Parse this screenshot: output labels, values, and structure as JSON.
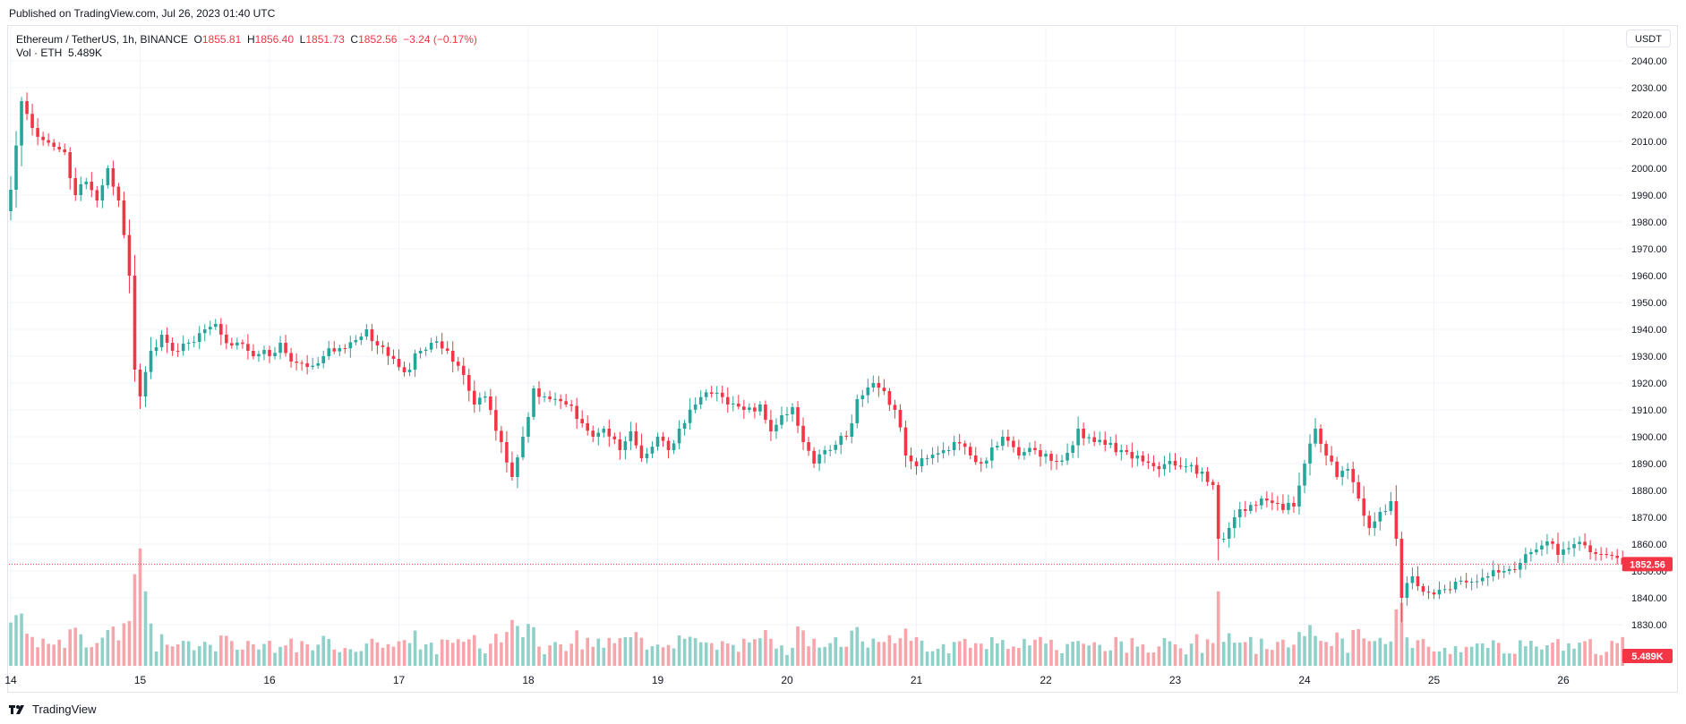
{
  "header": {
    "published": "Published on TradingView.com, Jul 26, 2023 01:40 UTC"
  },
  "legend": {
    "symbol": "Ethereum / TetherUS, 1h, BINANCE",
    "o_label": "O",
    "o_value": "1855.81",
    "h_label": "H",
    "h_value": "1856.40",
    "l_label": "L",
    "l_value": "1851.73",
    "c_label": "C",
    "c_value": "1852.56",
    "change": "−3.24 (−0.17%)",
    "vol_label": "Vol · ETH",
    "vol_value": "5.489K"
  },
  "currency_button": "USDT",
  "brand": {
    "name": "TradingView",
    "icon": "tradingview-logo-icon"
  },
  "colors": {
    "up": "#26a69a",
    "down": "#f23645",
    "vol_up": "#8fd1c9",
    "vol_down": "#f7a5aa",
    "grid": "#f0f3fa"
  },
  "chart_data": {
    "type": "candlestick",
    "title": "Ethereum / TetherUS, 1h, BINANCE",
    "y_axis": {
      "ticks": [
        1830,
        1840,
        1850,
        1860,
        1870,
        1880,
        1890,
        1900,
        1910,
        1920,
        1930,
        1940,
        1950,
        1960,
        1970,
        1980,
        1990,
        2000,
        2010,
        2020,
        2030,
        2040
      ],
      "tick_labels": [
        "1830.00",
        "1840.00",
        "1850.00",
        "1860.00",
        "1870.00",
        "1880.00",
        "1890.00",
        "1900.00",
        "1910.00",
        "1920.00",
        "1930.00",
        "1940.00",
        "1950.00",
        "1960.00",
        "1970.00",
        "1980.00",
        "1990.00",
        "2000.00",
        "2010.00",
        "2020.00",
        "2030.00",
        "2040.00"
      ],
      "range": [
        1820,
        2045
      ]
    },
    "x_axis": {
      "ticks": [
        "14",
        "15",
        "16",
        "17",
        "18",
        "19",
        "20",
        "21",
        "22",
        "23",
        "24",
        "25",
        "26"
      ],
      "range_hours": [
        0,
        300
      ]
    },
    "last_price": 1852.56,
    "last_price_label": "1852.56",
    "last_volume_label": "5.489K",
    "keypoints": [
      [
        0,
        1992
      ],
      [
        2,
        2025
      ],
      [
        4,
        2015
      ],
      [
        8,
        2008
      ],
      [
        10,
        2006
      ],
      [
        12,
        1990
      ],
      [
        14,
        1995
      ],
      [
        16,
        1988
      ],
      [
        18,
        2000
      ],
      [
        20,
        1988
      ],
      [
        22,
        1960
      ],
      [
        23,
        1925
      ],
      [
        24,
        1915
      ],
      [
        26,
        1932
      ],
      [
        28,
        1938
      ],
      [
        30,
        1932
      ],
      [
        33,
        1935
      ],
      [
        36,
        1940
      ],
      [
        38,
        1942
      ],
      [
        41,
        1934
      ],
      [
        44,
        1932
      ],
      [
        48,
        1930
      ],
      [
        50,
        1935
      ],
      [
        52,
        1928
      ],
      [
        55,
        1926
      ],
      [
        58,
        1930
      ],
      [
        61,
        1933
      ],
      [
        64,
        1936
      ],
      [
        66,
        1940
      ],
      [
        68,
        1934
      ],
      [
        71,
        1929
      ],
      [
        73,
        1924
      ],
      [
        76,
        1932
      ],
      [
        78,
        1935
      ],
      [
        81,
        1932
      ],
      [
        84,
        1923
      ],
      [
        86,
        1912
      ],
      [
        88,
        1915
      ],
      [
        91,
        1898
      ],
      [
        93,
        1885
      ],
      [
        95,
        1900
      ],
      [
        97,
        1918
      ],
      [
        100,
        1914
      ],
      [
        103,
        1912
      ],
      [
        106,
        1905
      ],
      [
        108,
        1900
      ],
      [
        110,
        1903
      ],
      [
        113,
        1895
      ],
      [
        115,
        1902
      ],
      [
        117,
        1892
      ],
      [
        120,
        1900
      ],
      [
        122,
        1895
      ],
      [
        124,
        1903
      ],
      [
        127,
        1912
      ],
      [
        130,
        1916
      ],
      [
        133,
        1912
      ],
      [
        136,
        1910
      ],
      [
        139,
        1912
      ],
      [
        141,
        1902
      ],
      [
        143,
        1908
      ],
      [
        145,
        1911
      ],
      [
        147,
        1898
      ],
      [
        149,
        1890
      ],
      [
        151,
        1895
      ],
      [
        153,
        1897
      ],
      [
        155,
        1900
      ],
      [
        157,
        1914
      ],
      [
        160,
        1920
      ],
      [
        162,
        1917
      ],
      [
        164,
        1910
      ],
      [
        166,
        1893
      ],
      [
        168,
        1889
      ],
      [
        170,
        1892
      ],
      [
        173,
        1895
      ],
      [
        175,
        1898
      ],
      [
        178,
        1893
      ],
      [
        180,
        1890
      ],
      [
        182,
        1896
      ],
      [
        184,
        1900
      ],
      [
        187,
        1893
      ],
      [
        190,
        1895
      ],
      [
        193,
        1891
      ],
      [
        196,
        1894
      ],
      [
        198,
        1903
      ],
      [
        201,
        1898
      ],
      [
        203,
        1897
      ],
      [
        206,
        1895
      ],
      [
        209,
        1893
      ],
      [
        212,
        1889
      ],
      [
        215,
        1891
      ],
      [
        218,
        1889
      ],
      [
        221,
        1887
      ],
      [
        223,
        1882
      ],
      [
        224,
        1862
      ],
      [
        226,
        1866
      ],
      [
        228,
        1873
      ],
      [
        232,
        1877
      ],
      [
        235,
        1875
      ],
      [
        238,
        1874
      ],
      [
        240,
        1890
      ],
      [
        242,
        1903
      ],
      [
        244,
        1893
      ],
      [
        246,
        1885
      ],
      [
        248,
        1888
      ],
      [
        250,
        1877
      ],
      [
        252,
        1866
      ],
      [
        254,
        1872
      ],
      [
        256,
        1876
      ],
      [
        257,
        1862
      ],
      [
        258,
        1840
      ],
      [
        260,
        1848
      ],
      [
        263,
        1842
      ],
      [
        265,
        1843
      ],
      [
        268,
        1846
      ],
      [
        271,
        1846
      ],
      [
        274,
        1848
      ],
      [
        277,
        1850
      ],
      [
        280,
        1853
      ],
      [
        283,
        1858
      ],
      [
        285,
        1861
      ],
      [
        287,
        1856
      ],
      [
        290,
        1860
      ],
      [
        293,
        1857
      ],
      [
        296,
        1856
      ],
      [
        299,
        1852.56
      ]
    ],
    "volume_spikes": {
      "23": 3.2,
      "24": 4.1,
      "25": 2.6,
      "93": 1.6,
      "166": 1.3,
      "168": 1.0,
      "224": 2.6,
      "258": 2.2
    }
  }
}
